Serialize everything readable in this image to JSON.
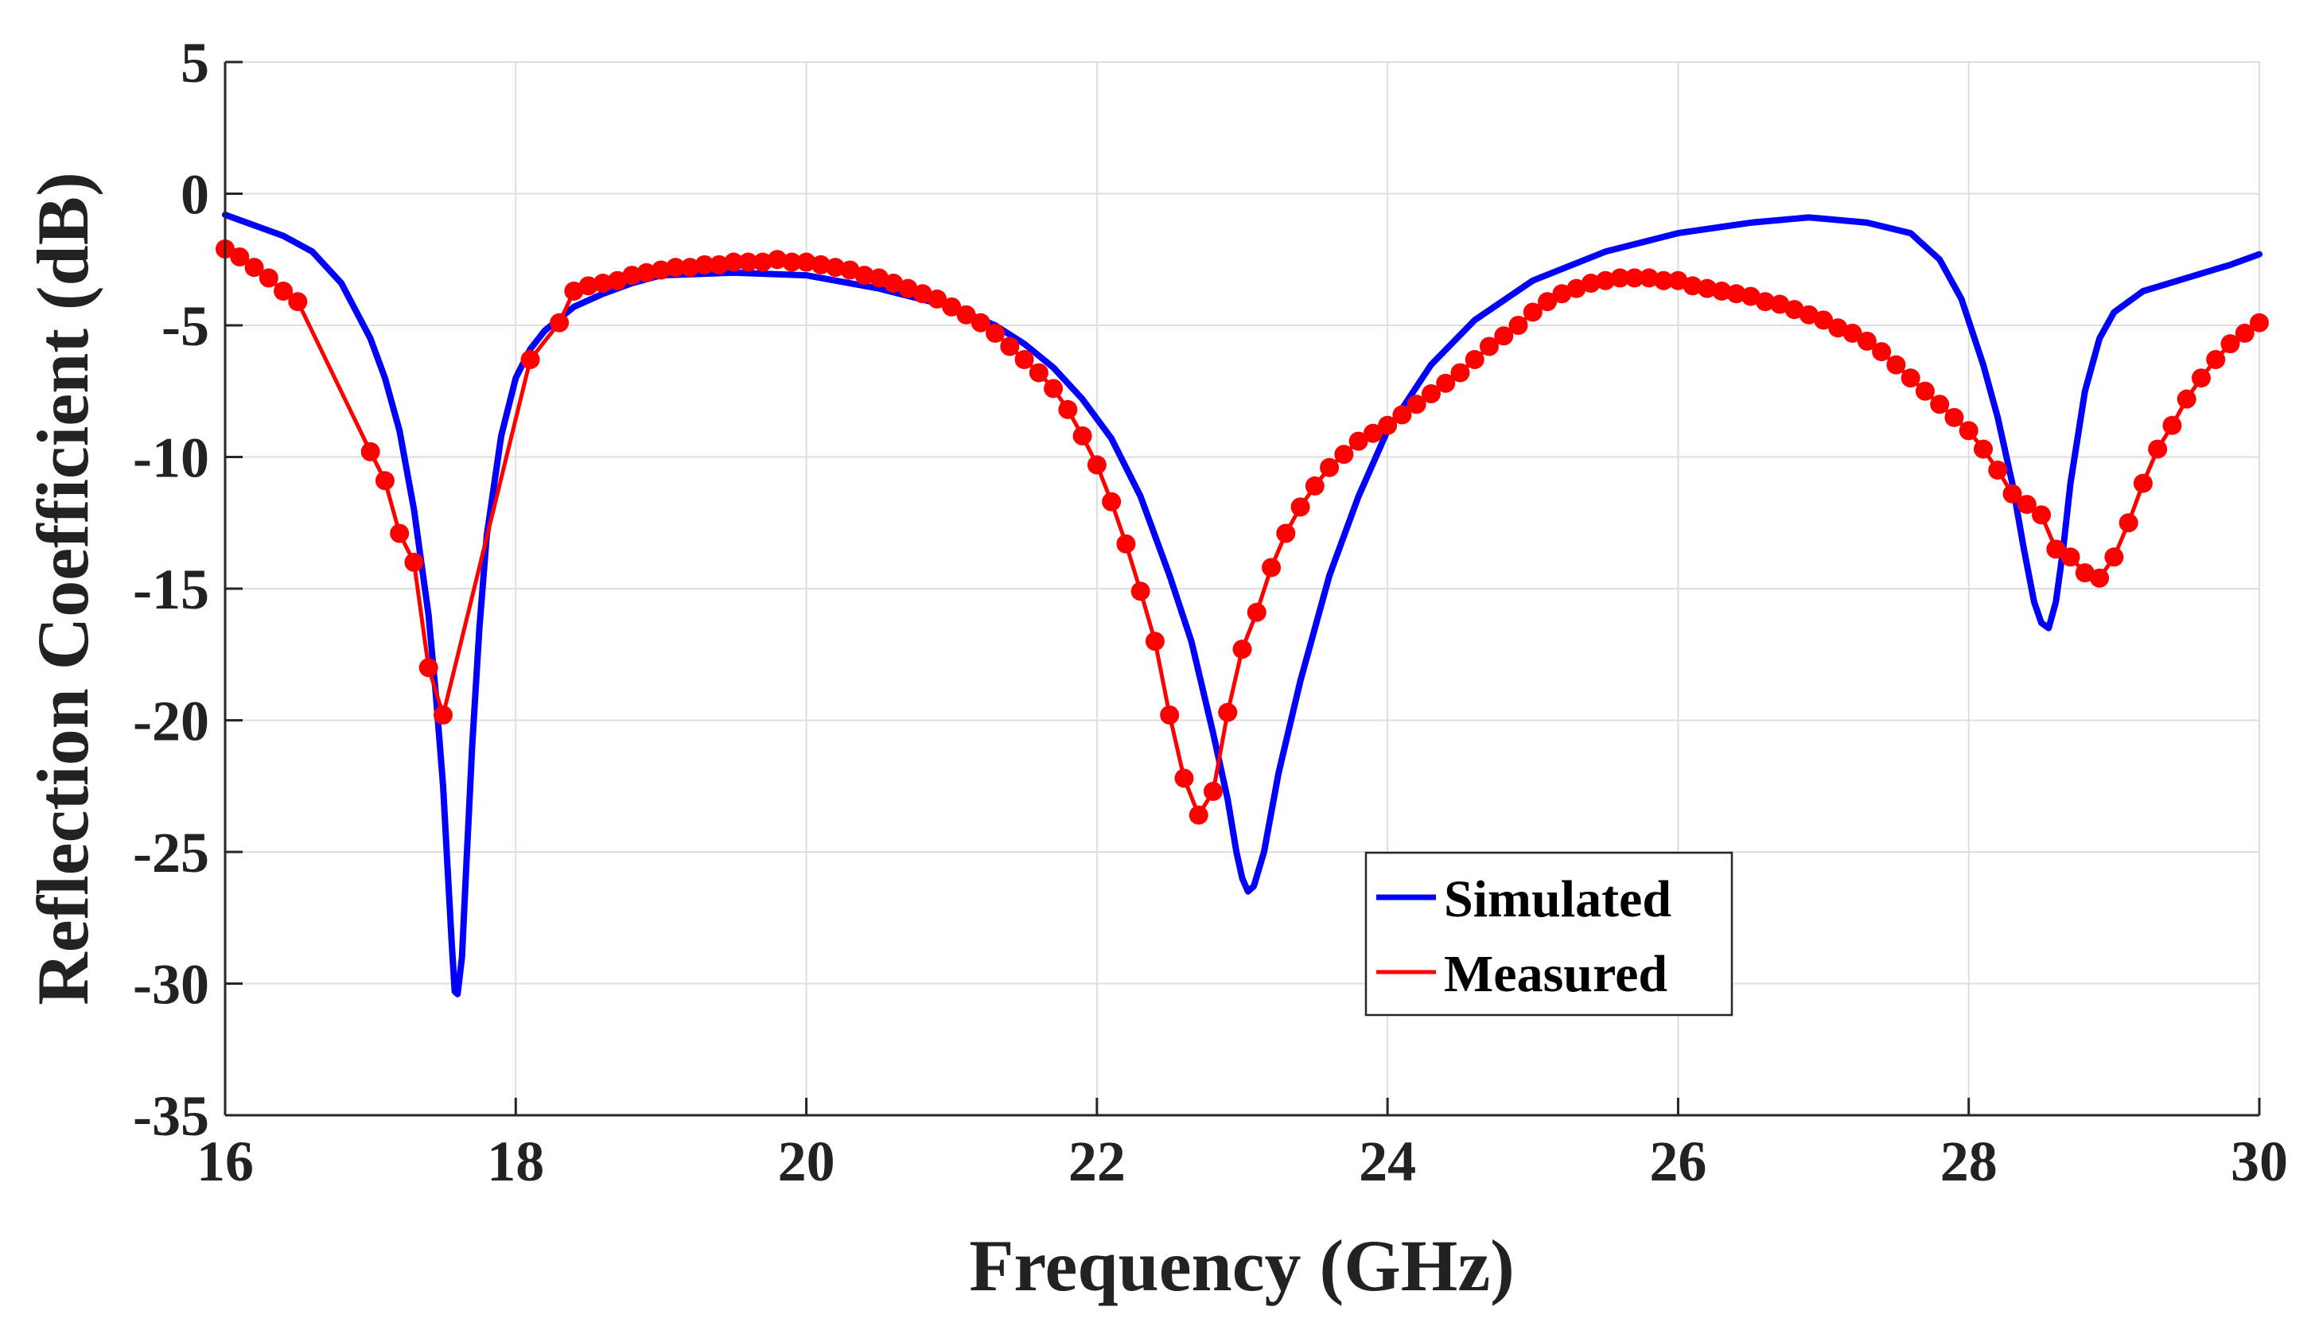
{
  "chart_data": {
    "type": "line",
    "title": "",
    "xlabel": "Frequency (GHz)",
    "ylabel": "Reflection Coefficient (dB)",
    "xlim": [
      16,
      30
    ],
    "ylim": [
      -35,
      5
    ],
    "xticks": [
      16,
      18,
      20,
      22,
      24,
      26,
      28,
      30
    ],
    "yticks": [
      5,
      0,
      -5,
      -10,
      -15,
      -20,
      -25,
      -30,
      -35
    ],
    "xtick_labels": [
      "16",
      "18",
      "20",
      "22",
      "24",
      "26",
      "28",
      "30"
    ],
    "ytick_labels": [
      "5",
      "0",
      "-5",
      "-10",
      "-15",
      "-20",
      "-25",
      "-30",
      "-35"
    ],
    "grid": true,
    "legend_position": "lower-center-right",
    "series": [
      {
        "name": "Simulated",
        "color": "#0000FF",
        "marker": "none",
        "x": [
          16.0,
          16.2,
          16.4,
          16.6,
          16.8,
          17.0,
          17.1,
          17.2,
          17.3,
          17.4,
          17.45,
          17.5,
          17.53,
          17.56,
          17.58,
          17.6,
          17.63,
          17.66,
          17.7,
          17.75,
          17.8,
          17.9,
          18.0,
          18.1,
          18.2,
          18.4,
          18.6,
          18.8,
          19.0,
          19.5,
          20.0,
          20.5,
          21.0,
          21.3,
          21.5,
          21.7,
          21.9,
          22.1,
          22.3,
          22.5,
          22.65,
          22.8,
          22.9,
          22.96,
          23.0,
          23.04,
          23.08,
          23.15,
          23.25,
          23.4,
          23.6,
          23.8,
          24.0,
          24.3,
          24.6,
          25.0,
          25.5,
          26.0,
          26.5,
          26.9,
          27.3,
          27.6,
          27.8,
          27.95,
          28.1,
          28.2,
          28.3,
          28.38,
          28.45,
          28.5,
          28.55,
          28.6,
          28.65,
          28.7,
          28.8,
          28.9,
          29.0,
          29.2,
          29.5,
          29.8,
          30.0
        ],
        "y": [
          -0.8,
          -1.2,
          -1.6,
          -2.2,
          -3.4,
          -5.5,
          -7.0,
          -9.0,
          -12.0,
          -16.0,
          -19.0,
          -22.5,
          -25.5,
          -28.5,
          -30.3,
          -30.4,
          -29.0,
          -25.5,
          -21.0,
          -16.5,
          -13.0,
          -9.2,
          -7.0,
          -5.9,
          -5.2,
          -4.3,
          -3.8,
          -3.4,
          -3.1,
          -3.0,
          -3.1,
          -3.6,
          -4.3,
          -5.0,
          -5.7,
          -6.6,
          -7.8,
          -9.3,
          -11.5,
          -14.5,
          -17.0,
          -20.5,
          -23.0,
          -25.0,
          -26.0,
          -26.5,
          -26.3,
          -25.0,
          -22.0,
          -18.5,
          -14.5,
          -11.5,
          -9.0,
          -6.5,
          -4.8,
          -3.3,
          -2.2,
          -1.5,
          -1.1,
          -0.9,
          -1.1,
          -1.5,
          -2.5,
          -4.0,
          -6.5,
          -8.5,
          -11.0,
          -13.5,
          -15.5,
          -16.3,
          -16.5,
          -15.5,
          -13.5,
          -11.0,
          -7.5,
          -5.5,
          -4.5,
          -3.7,
          -3.2,
          -2.7,
          -2.3
        ]
      },
      {
        "name": "Measured",
        "color": "#FF0000",
        "marker": "circle",
        "x": [
          16.0,
          16.1,
          16.2,
          16.3,
          16.4,
          16.5,
          17.0,
          17.1,
          17.2,
          17.3,
          17.4,
          17.5,
          18.1,
          18.3,
          18.4,
          18.5,
          18.6,
          18.7,
          18.8,
          18.9,
          19.0,
          19.1,
          19.2,
          19.3,
          19.4,
          19.5,
          19.6,
          19.7,
          19.8,
          19.9,
          20.0,
          20.1,
          20.2,
          20.3,
          20.4,
          20.5,
          20.6,
          20.7,
          20.8,
          20.9,
          21.0,
          21.1,
          21.2,
          21.3,
          21.4,
          21.5,
          21.6,
          21.7,
          21.8,
          21.9,
          22.0,
          22.1,
          22.2,
          22.3,
          22.4,
          22.5,
          22.6,
          22.7,
          22.8,
          22.9,
          23.0,
          23.1,
          23.2,
          23.3,
          23.4,
          23.5,
          23.6,
          23.7,
          23.8,
          23.9,
          24.0,
          24.1,
          24.2,
          24.3,
          24.4,
          24.5,
          24.6,
          24.7,
          24.8,
          24.9,
          25.0,
          25.1,
          25.2,
          25.3,
          25.4,
          25.5,
          25.6,
          25.7,
          25.8,
          25.9,
          26.0,
          26.1,
          26.2,
          26.3,
          26.4,
          26.5,
          26.6,
          26.7,
          26.8,
          26.9,
          27.0,
          27.1,
          27.2,
          27.3,
          27.4,
          27.5,
          27.6,
          27.7,
          27.8,
          27.9,
          28.0,
          28.1,
          28.2,
          28.3,
          28.4,
          28.5,
          28.6,
          28.7,
          28.8,
          28.9,
          29.0,
          29.1,
          29.2,
          29.3,
          29.4,
          29.5,
          29.6,
          29.7,
          29.8,
          29.9,
          30.0
        ],
        "y": [
          -2.1,
          -2.4,
          -2.8,
          -3.2,
          -3.7,
          -4.1,
          -9.8,
          -10.9,
          -12.9,
          -14.0,
          -18.0,
          -19.8,
          -6.3,
          -4.9,
          -3.7,
          -3.5,
          -3.4,
          -3.3,
          -3.1,
          -3.0,
          -2.9,
          -2.8,
          -2.8,
          -2.7,
          -2.7,
          -2.6,
          -2.6,
          -2.6,
          -2.5,
          -2.6,
          -2.6,
          -2.7,
          -2.8,
          -2.9,
          -3.1,
          -3.2,
          -3.4,
          -3.6,
          -3.8,
          -4.0,
          -4.3,
          -4.6,
          -4.9,
          -5.3,
          -5.8,
          -6.3,
          -6.8,
          -7.4,
          -8.2,
          -9.2,
          -10.3,
          -11.7,
          -13.3,
          -15.1,
          -17.0,
          -19.8,
          -22.2,
          -23.6,
          -22.7,
          -19.7,
          -17.3,
          -15.9,
          -14.2,
          -12.9,
          -11.9,
          -11.1,
          -10.4,
          -9.9,
          -9.4,
          -9.1,
          -8.8,
          -8.4,
          -8.0,
          -7.6,
          -7.2,
          -6.8,
          -6.3,
          -5.8,
          -5.4,
          -5.0,
          -4.5,
          -4.1,
          -3.8,
          -3.6,
          -3.4,
          -3.3,
          -3.2,
          -3.2,
          -3.2,
          -3.3,
          -3.3,
          -3.5,
          -3.6,
          -3.7,
          -3.8,
          -3.9,
          -4.1,
          -4.2,
          -4.4,
          -4.6,
          -4.8,
          -5.1,
          -5.3,
          -5.6,
          -6.0,
          -6.5,
          -7.0,
          -7.5,
          -8.0,
          -8.5,
          -9.0,
          -9.7,
          -10.5,
          -11.4,
          -11.8,
          -12.2,
          -13.5,
          -13.8,
          -14.4,
          -14.6,
          -13.8,
          -12.5,
          -11.0,
          -9.7,
          -8.8,
          -7.8,
          -7.0,
          -6.3,
          -5.7,
          -5.3,
          -4.9
        ]
      }
    ]
  }
}
